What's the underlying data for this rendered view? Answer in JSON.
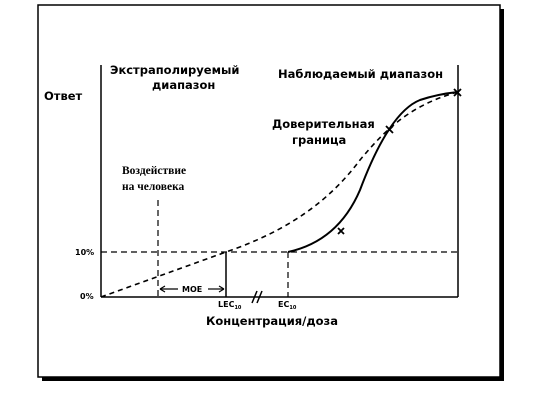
{
  "response_axis": "Ответ",
  "extrapolated_range": [
    "Экстраполируемый",
    "диапазон"
  ],
  "observed_range": "Наблюдаемый диапазон",
  "confidence_bound": [
    "Доверительная",
    "граница"
  ],
  "human_exposure": [
    "Воздействие",
    "на человека"
  ],
  "y_labels": [
    "10%",
    "0%"
  ],
  "moe": "MOE",
  "lec": {
    "text": "LEC",
    "sub": "10"
  },
  "ec": {
    "text": "EC",
    "sub": "10"
  },
  "x_axis": "Концентрация/доза"
}
